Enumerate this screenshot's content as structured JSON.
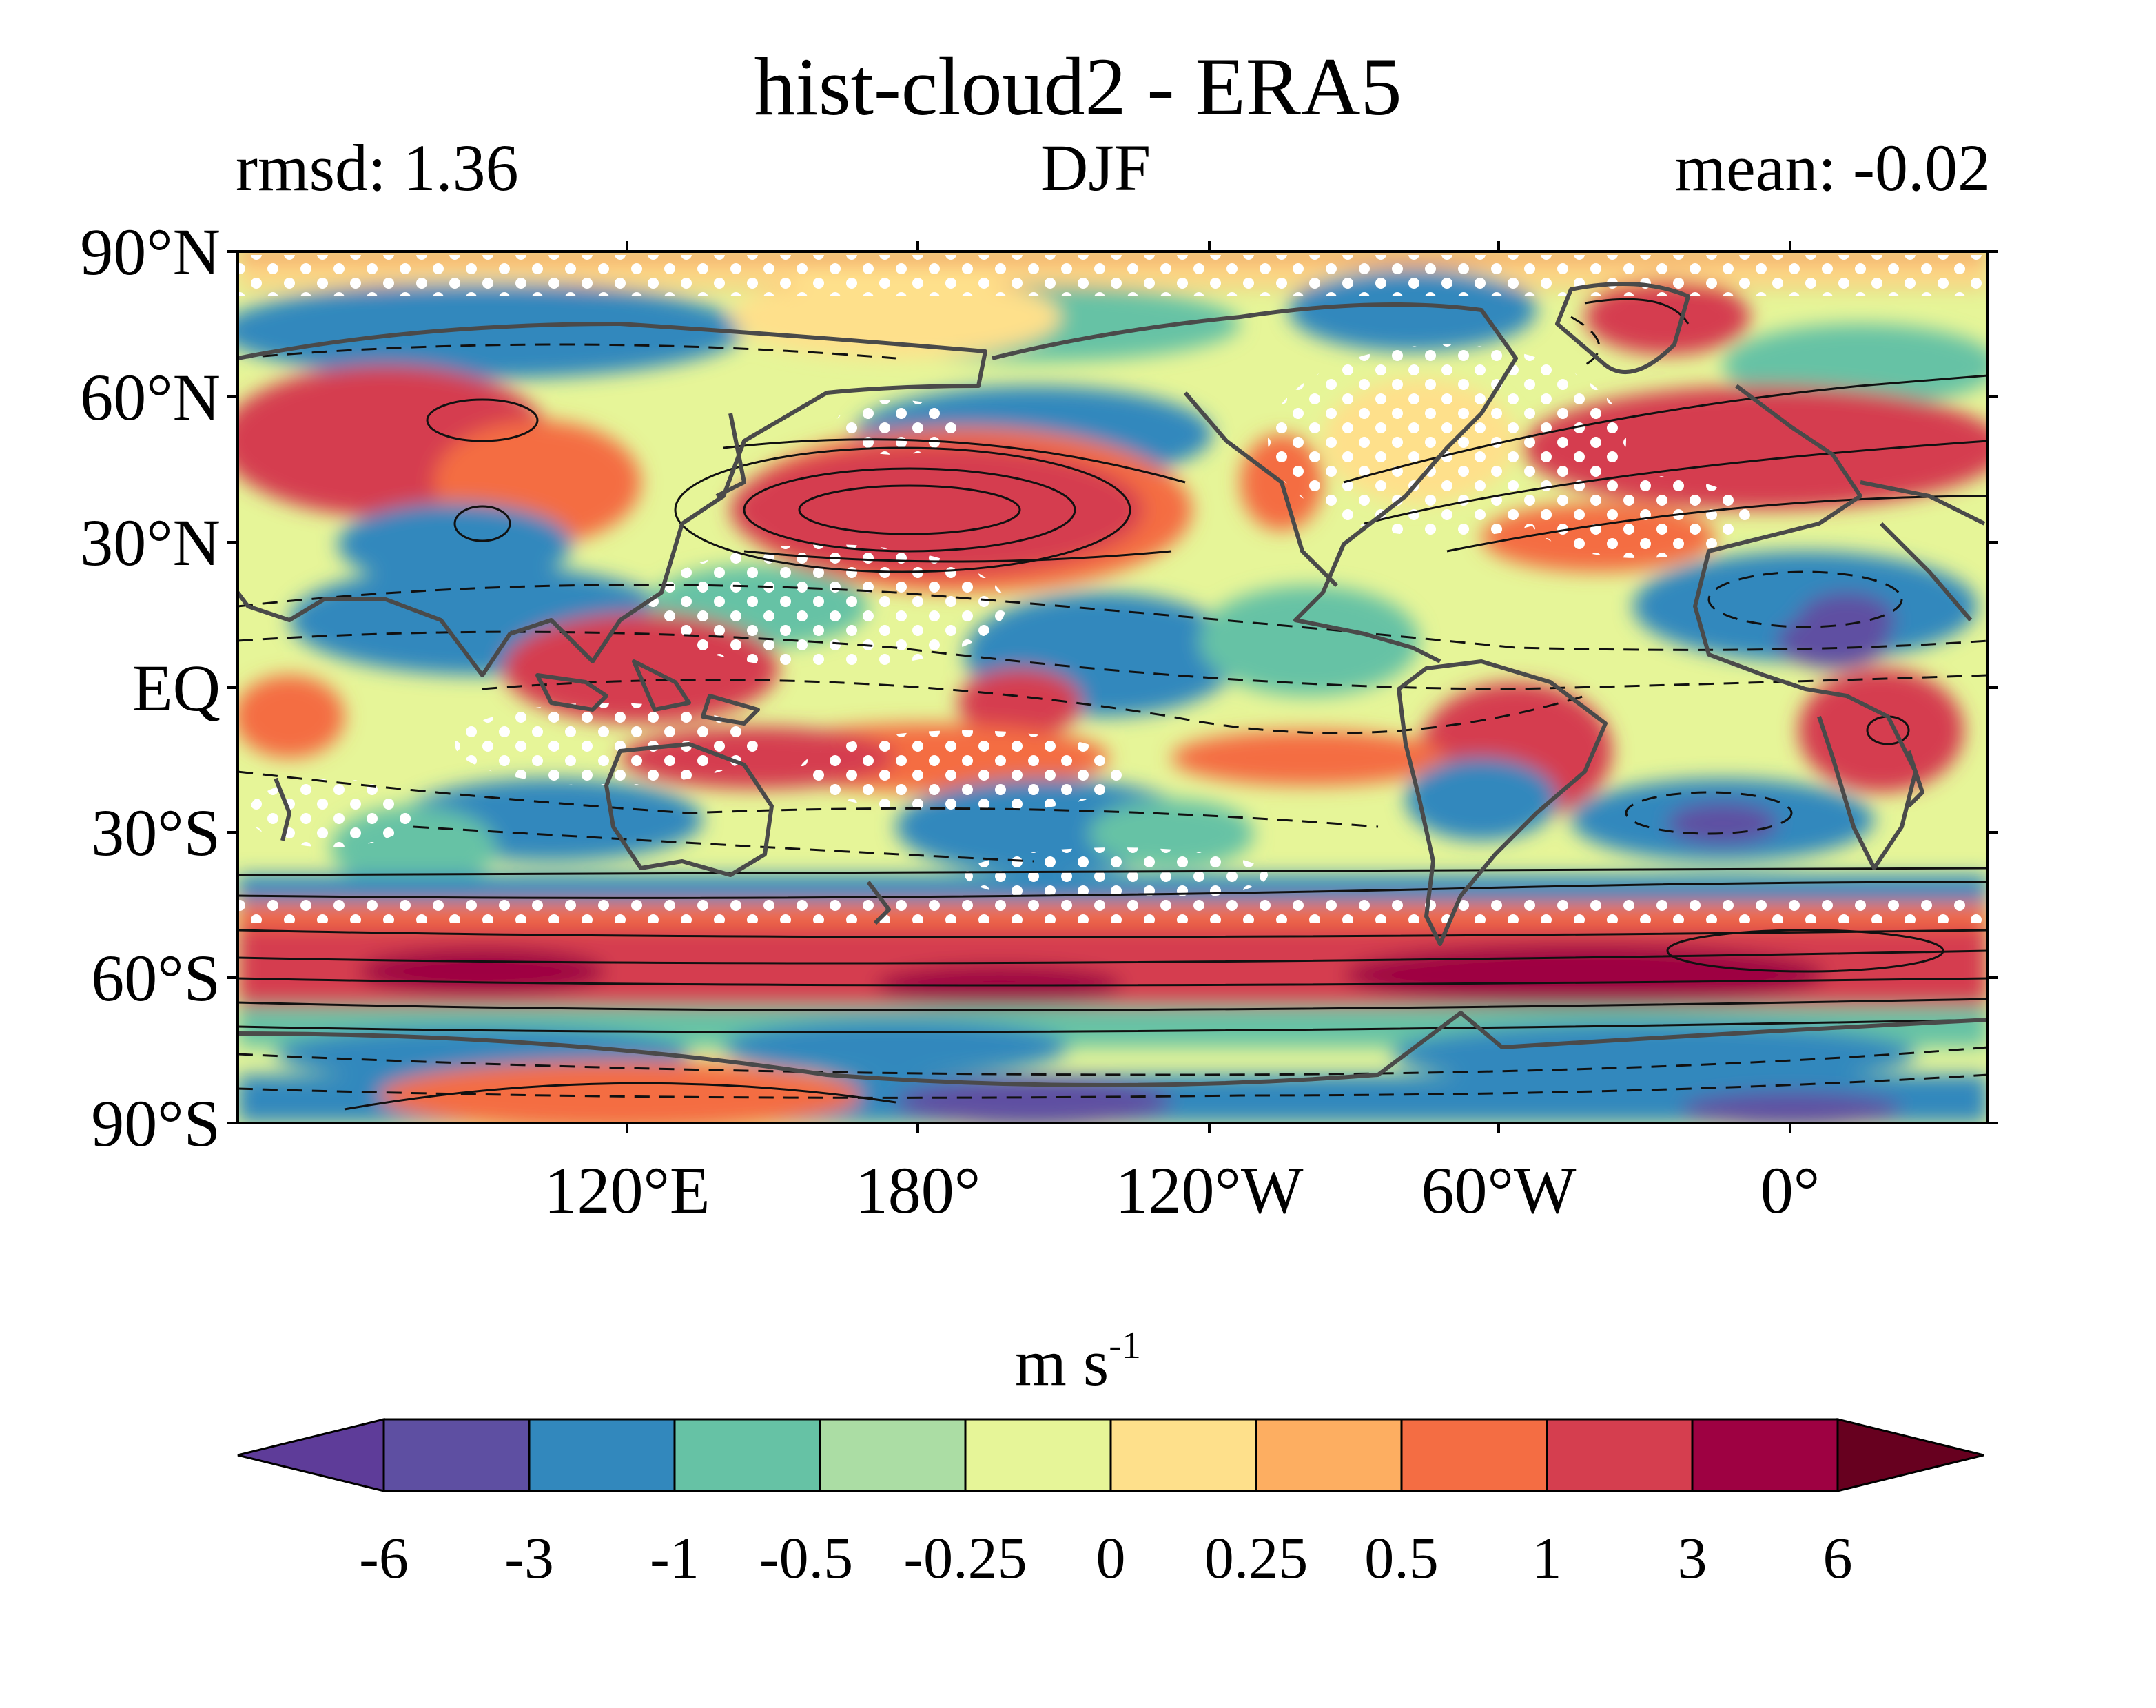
{
  "title": "hist-cloud2 - ERA5",
  "stats": {
    "rmsd": "rmsd: 1.36",
    "season": "DJF",
    "mean": "mean: -0.02"
  },
  "lat_labels": [
    "90°N",
    "60°N",
    "30°N",
    "EQ",
    "30°S",
    "60°S",
    "90°S"
  ],
  "lon_labels": [
    "120°E",
    "180°",
    "120°W",
    "60°W",
    "0°"
  ],
  "colorbar": {
    "units_main": "m s",
    "units_exp": "-1",
    "ticks": [
      "-6",
      "-3",
      "-1",
      "-0.5",
      "-0.25",
      "0",
      "0.25",
      "0.5",
      "1",
      "3",
      "6"
    ],
    "colors": [
      "#5e3c99",
      "#5e4fa2",
      "#3288bd",
      "#66c2a5",
      "#abdda4",
      "#e6f598",
      "#fee08b",
      "#fdae61",
      "#f46d43",
      "#d53e4f",
      "#9e0142",
      "#67001f"
    ]
  },
  "colors": {
    "map_background": "#e6f598",
    "coastline": "#4a4a4a",
    "stipple": "#ffffff"
  }
}
